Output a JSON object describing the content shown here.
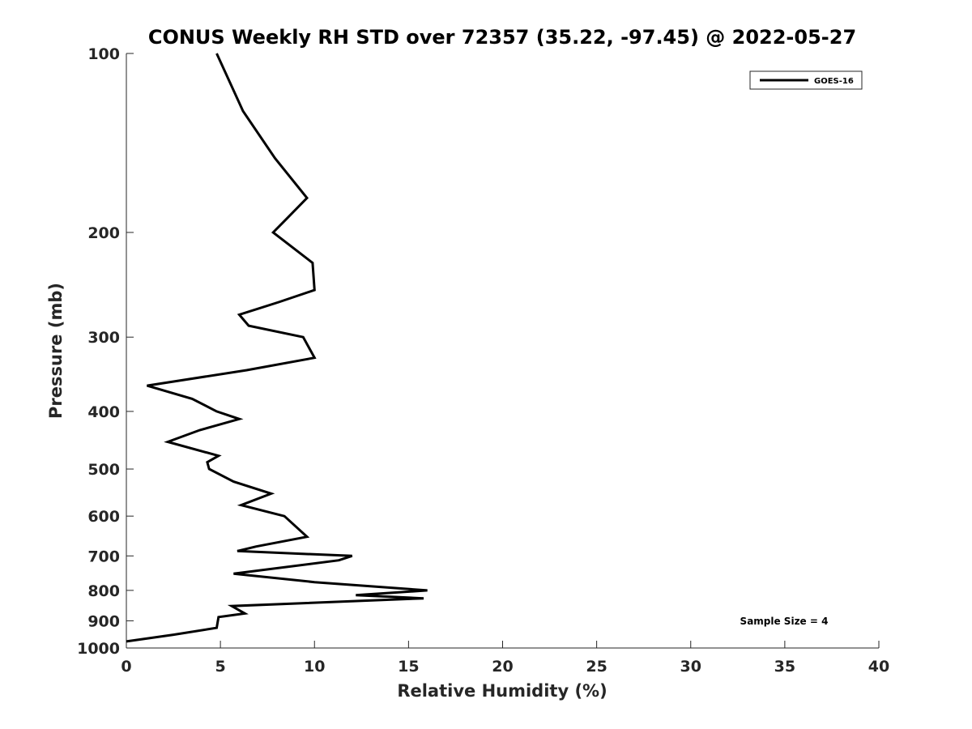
{
  "chart_data": {
    "type": "line",
    "title": "CONUS Weekly RH STD over 72357 (35.22, -97.45) @ 2022-05-27",
    "xlabel": "Relative Humidity (%)",
    "ylabel": "Pressure (mb)",
    "xlim": [
      0,
      40
    ],
    "ylim": [
      100,
      1000
    ],
    "y_scale": "log",
    "y_reversed": true,
    "x_ticks": [
      0,
      5,
      10,
      15,
      20,
      25,
      30,
      35,
      40
    ],
    "x_tick_labels": [
      "0",
      "5",
      "10",
      "15",
      "20",
      "25",
      "30",
      "35",
      "40"
    ],
    "y_ticks": [
      100,
      200,
      300,
      400,
      500,
      600,
      700,
      800,
      900,
      1000
    ],
    "y_tick_labels": [
      "100",
      "200",
      "300",
      "400",
      "500",
      "600",
      "700",
      "800",
      "900",
      "1000"
    ],
    "grid": false,
    "legend": {
      "placement": "top-right",
      "entries": [
        "GOES-16"
      ]
    },
    "annotation": "Sample Size = 4",
    "series": [
      {
        "name": "GOES-16",
        "color": "#000000",
        "points": [
          [
            4.8,
            100
          ],
          [
            6.2,
            125
          ],
          [
            7.9,
            150
          ],
          [
            9.6,
            175
          ],
          [
            8.5,
            190
          ],
          [
            7.8,
            200
          ],
          [
            9.9,
            225
          ],
          [
            10.0,
            250
          ],
          [
            8.1,
            262
          ],
          [
            6.0,
            275
          ],
          [
            6.5,
            287
          ],
          [
            9.4,
            300
          ],
          [
            10.0,
            325
          ],
          [
            6.4,
            341
          ],
          [
            1.1,
            362
          ],
          [
            3.5,
            381
          ],
          [
            4.8,
            400
          ],
          [
            6.0,
            412
          ],
          [
            3.9,
            430
          ],
          [
            2.2,
            450
          ],
          [
            4.9,
            475
          ],
          [
            4.3,
            487
          ],
          [
            4.4,
            500
          ],
          [
            5.7,
            525
          ],
          [
            7.7,
            550
          ],
          [
            6.1,
            575
          ],
          [
            8.4,
            600
          ],
          [
            9.6,
            650
          ],
          [
            6.9,
            675
          ],
          [
            5.9,
            687
          ],
          [
            12.0,
            700
          ],
          [
            11.3,
            712
          ],
          [
            5.7,
            750
          ],
          [
            10.0,
            775
          ],
          [
            16.0,
            800
          ],
          [
            12.2,
            815
          ],
          [
            15.8,
            825
          ],
          [
            5.6,
            850
          ],
          [
            6.3,
            875
          ],
          [
            4.9,
            887
          ],
          [
            4.8,
            925
          ],
          [
            2.5,
            950
          ],
          [
            0.0,
            975
          ]
        ]
      }
    ]
  }
}
